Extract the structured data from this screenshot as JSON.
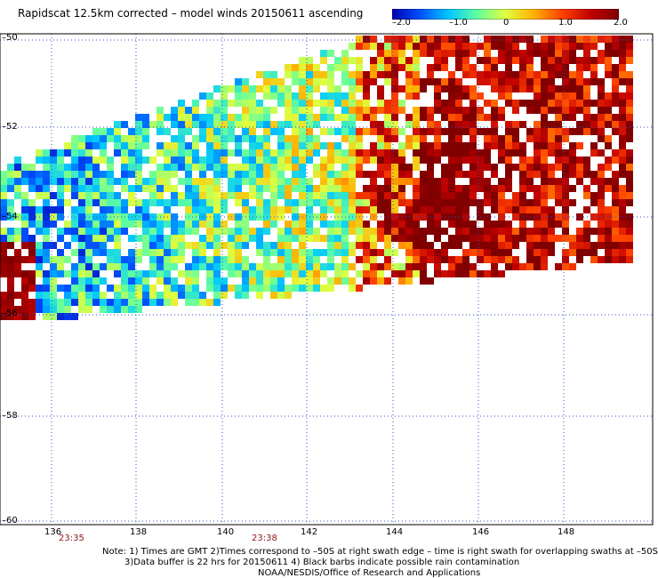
{
  "title": "Rapidscat 12.5km corrected – model winds 20150611 ascending",
  "colorbar": {
    "ticks": [
      "–2.0",
      "–1.0",
      "0",
      "1.0",
      "2.0"
    ],
    "tick_values": [
      -2.0,
      -1.0,
      0,
      1.0,
      2.0
    ],
    "range": [
      -2.0,
      2.0
    ],
    "colors": [
      "#0000b0",
      "#0050ff",
      "#00c8ff",
      "#60ffa0",
      "#e0ff40",
      "#ffb000",
      "#ff4000",
      "#c00000",
      "#800000"
    ]
  },
  "axes": {
    "lat_labels": [
      "–50",
      "–52",
      "–54",
      "–56",
      "–58",
      "–60"
    ],
    "lat_values": [
      -50,
      -52,
      -54,
      -56,
      -58,
      -60
    ],
    "lon_labels": [
      "136",
      "138",
      "140",
      "142",
      "144",
      "146",
      "148"
    ],
    "lon_values": [
      136,
      138,
      140,
      142,
      144,
      146,
      148
    ],
    "grid": "dotted",
    "ranges": {
      "lon": [
        135.1,
        150.0
      ],
      "lat": [
        -60.0,
        -50.0
      ]
    }
  },
  "time_labels": [
    {
      "text": "23:35"
    },
    {
      "text": "23:38"
    }
  ],
  "notes": [
    "Note: 1) Times are GMT 2)Times correspond to –50S at right swath edge – time is right swath for overlapping swaths at –50S",
    "3)Data buffer is 22 hrs for 20150611 4) Black barbs indicate possible rain contamination",
    "NOAA/NESDIS/Office of Research and Applications"
  ]
}
